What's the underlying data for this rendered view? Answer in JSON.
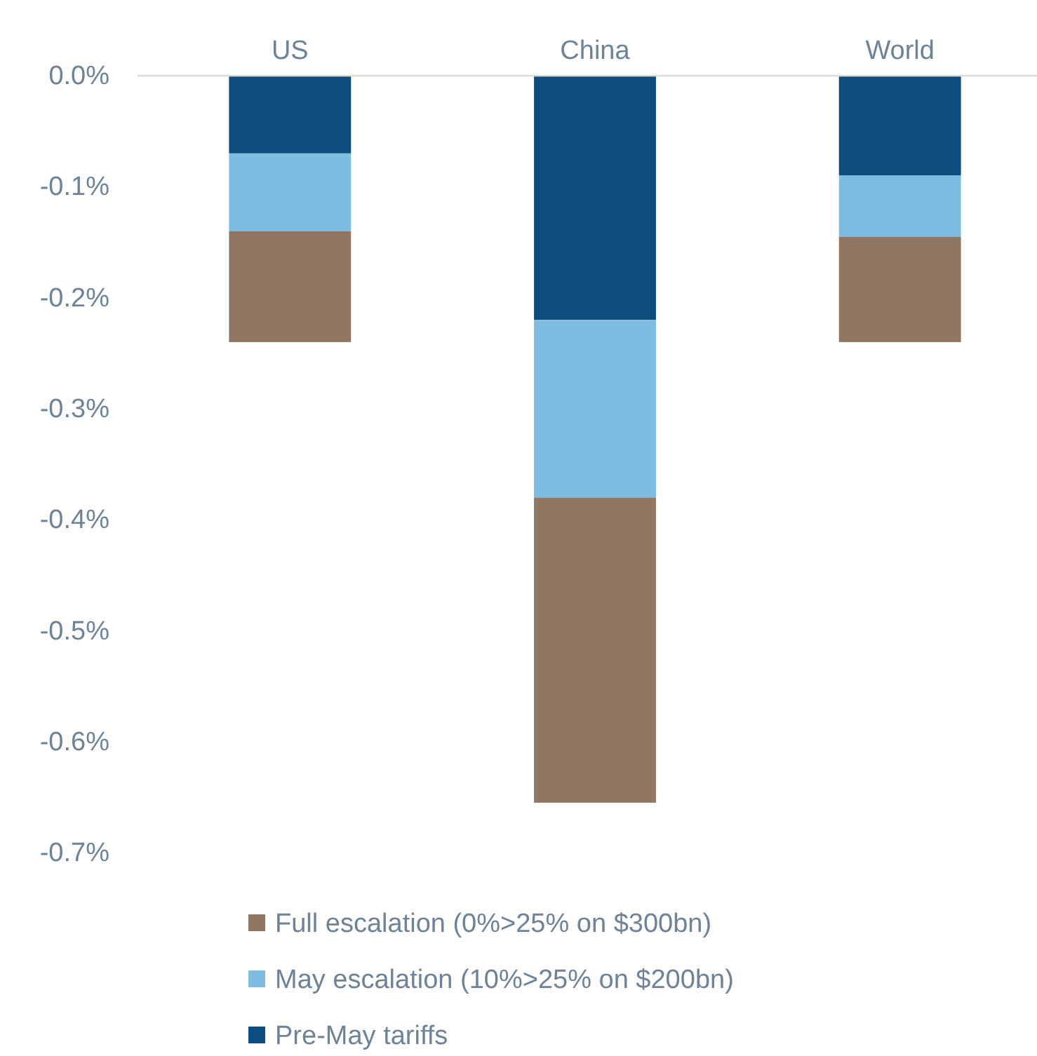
{
  "chart_data": {
    "type": "bar",
    "stacked": true,
    "categories": [
      "US",
      "China",
      "World"
    ],
    "series": [
      {
        "name": "Pre-May tariffs",
        "color": "#0d4c7e",
        "values": [
          -0.07,
          -0.22,
          -0.09
        ]
      },
      {
        "name": "May escalation (10%>25% on $200bn)",
        "color": "#7fbce2",
        "values": [
          -0.07,
          -0.16,
          -0.055
        ]
      },
      {
        "name": "Full escalation (0%>25% on $300bn)",
        "color": "#917662",
        "values": [
          -0.1,
          -0.275,
          -0.095
        ]
      }
    ],
    "ylim": [
      -0.7,
      0
    ],
    "yticks": [
      {
        "value": 0,
        "label": "0.0%"
      },
      {
        "value": -0.1,
        "label": "-0.1%"
      },
      {
        "value": -0.2,
        "label": "-0.2%"
      },
      {
        "value": -0.3,
        "label": "-0.3%"
      },
      {
        "value": -0.4,
        "label": "-0.4%"
      },
      {
        "value": -0.5,
        "label": "-0.5%"
      },
      {
        "value": -0.6,
        "label": "-0.6%"
      },
      {
        "value": -0.7,
        "label": "-0.7%"
      }
    ],
    "legend": "bottom",
    "grid": false
  }
}
